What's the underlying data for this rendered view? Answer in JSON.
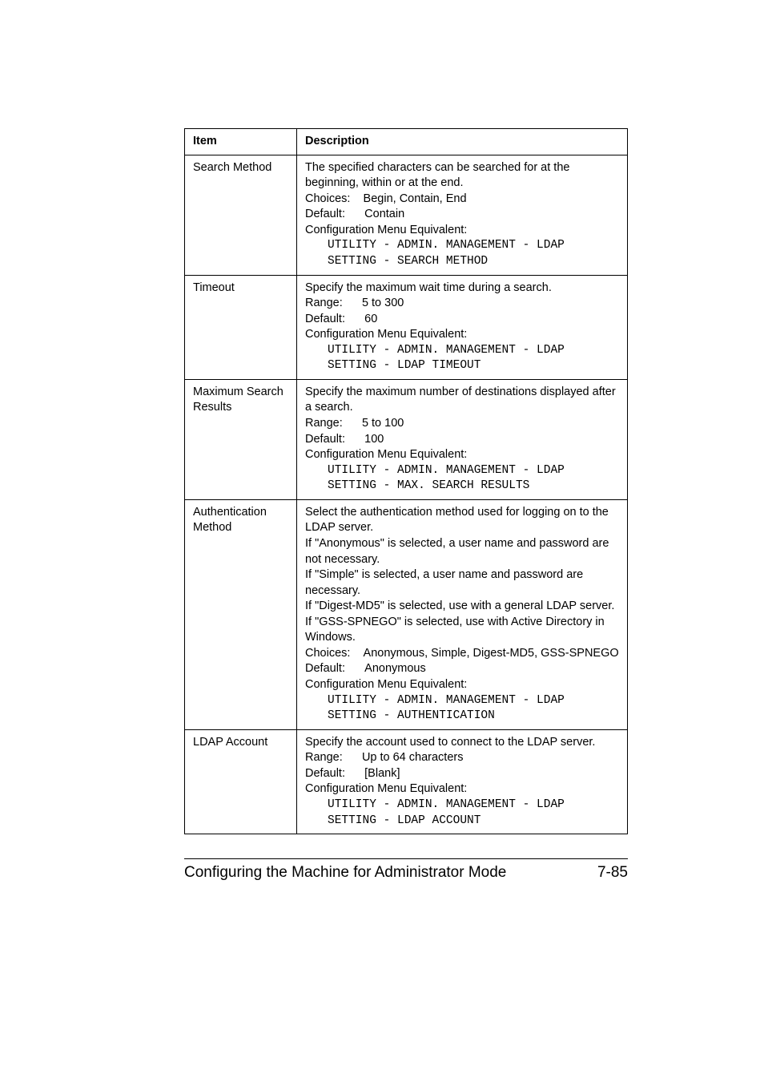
{
  "table": {
    "header": {
      "item": "Item",
      "description": "Description"
    },
    "rows": [
      {
        "item": "Search Method",
        "line1": "The specified characters can be searched for at the beginning, within or at the end.",
        "choices_label": "Choices:",
        "choices_value": "Begin, Contain, End",
        "default_label": "Default:",
        "default_value": "Contain",
        "equiv_label": "Configuration Menu Equivalent:",
        "equiv1": "UTILITY - ADMIN. MANAGEMENT - LDAP",
        "equiv2": "SETTING - SEARCH METHOD"
      },
      {
        "item": "Timeout",
        "line1": "Specify the maximum wait time during a search.",
        "range_label": "Range:",
        "range_value": "5 to 300",
        "default_label": "Default:",
        "default_value": "60",
        "equiv_label": "Configuration Menu Equivalent:",
        "equiv1": "UTILITY - ADMIN. MANAGEMENT - LDAP",
        "equiv2": "SETTING - LDAP TIMEOUT"
      },
      {
        "item": "Maximum Search Results",
        "line1": "Specify the maximum number of destinations displayed after a search.",
        "range_label": "Range:",
        "range_value": "5 to 100",
        "default_label": "Default:",
        "default_value": "100",
        "equiv_label": "Configuration Menu Equivalent:",
        "equiv1": "UTILITY - ADMIN. MANAGEMENT - LDAP",
        "equiv2": "SETTING - MAX. SEARCH RESULTS"
      },
      {
        "item": "Authentication Method",
        "line1": "Select the authentication method used for logging on to the LDAP server.",
        "line2": "If \"Anonymous\" is selected, a user name and password are not necessary.",
        "line3": "If \"Simple\" is selected, a user name and password are necessary.",
        "line4": "If \"Digest-MD5\" is selected, use with a general LDAP server.",
        "line5": "If \"GSS-SPNEGO\" is selected, use with Active Directory in Windows.",
        "choices_label": "Choices:",
        "choices_value": "Anonymous, Simple, Digest-MD5, GSS-SPNEGO",
        "default_label": "Default:",
        "default_value": "Anonymous",
        "equiv_label": "Configuration Menu Equivalent:",
        "equiv1": "UTILITY - ADMIN. MANAGEMENT - LDAP",
        "equiv2": "SETTING - AUTHENTICATION"
      },
      {
        "item": "LDAP Account",
        "line1": "Specify the account used to connect to the LDAP server.",
        "range_label": "Range:",
        "range_value": "Up to 64 characters",
        "default_label": "Default:",
        "default_value": "[Blank]",
        "equiv_label": "Configuration Menu Equivalent:",
        "equiv1": "UTILITY - ADMIN. MANAGEMENT - LDAP",
        "equiv2": "SETTING - LDAP ACCOUNT"
      }
    ]
  },
  "footer": {
    "title": "Configuring the Machine for Administrator Mode",
    "page": "7-85"
  }
}
